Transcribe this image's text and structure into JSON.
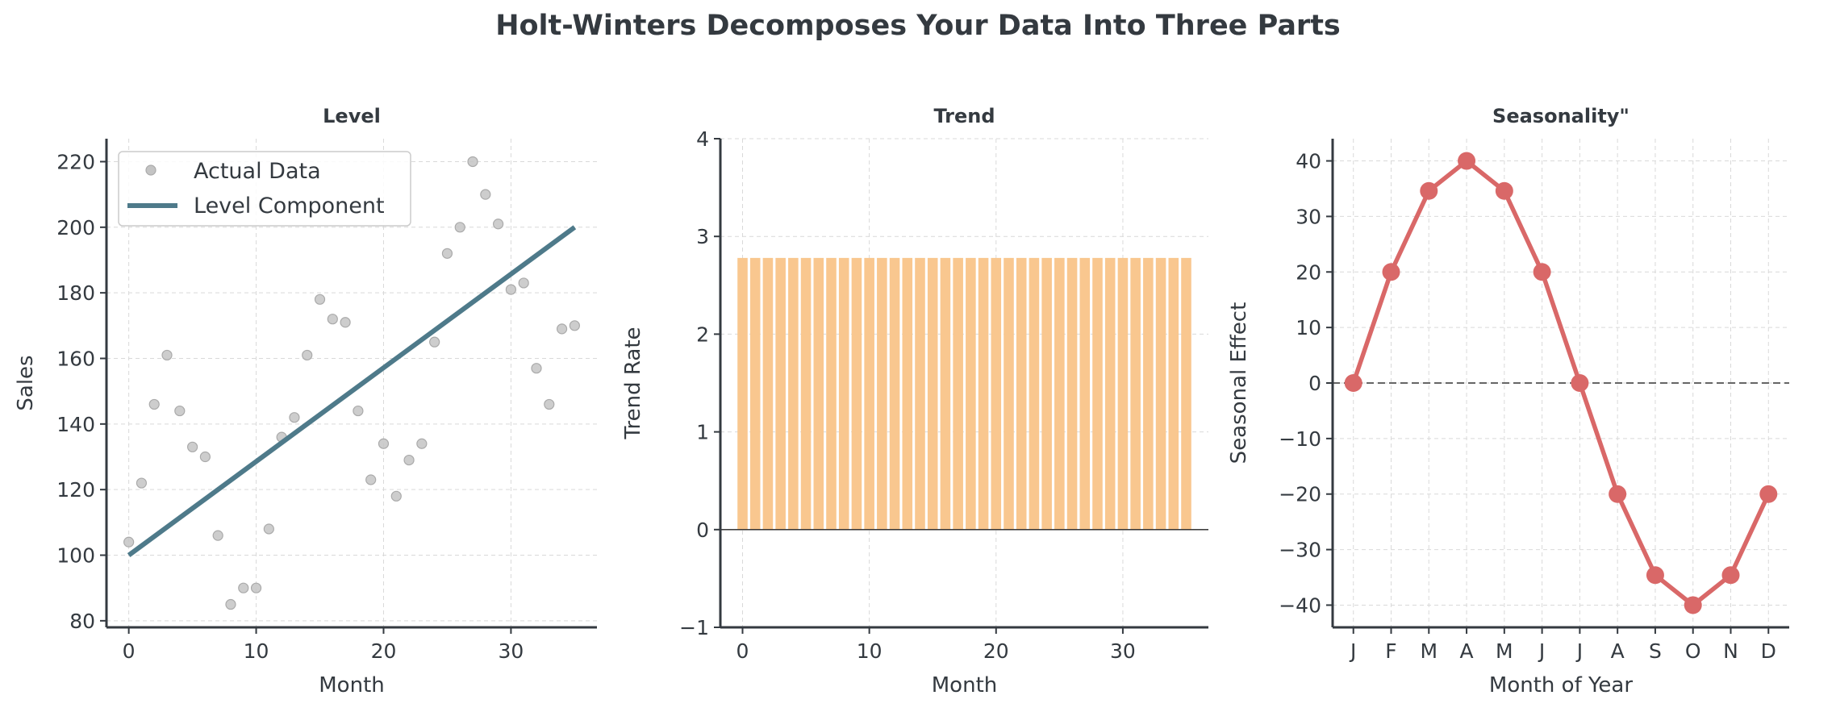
{
  "figure": {
    "title": "Holt-Winters Decomposes Your Data Into Three Parts"
  },
  "colors": {
    "text": "#343a40",
    "grid": "#d9d9d9",
    "actual": "#c4c4c4",
    "level": "#4e7a8a",
    "trend": "#f9c78f",
    "season": "#d96868",
    "zero_line": "#666666"
  },
  "chart_data": [
    {
      "type": "line",
      "title": "Level",
      "xlabel": "Month",
      "ylabel": "Sales",
      "xlim": [
        -1.75,
        36.75
      ],
      "ylim": [
        78,
        227
      ],
      "xticks": [
        0,
        10,
        20,
        30
      ],
      "yticks": [
        80,
        100,
        120,
        140,
        160,
        180,
        200,
        220
      ],
      "grid": true,
      "legend": "top-left",
      "series": [
        {
          "name": "Actual Data",
          "style": "scatter",
          "x": [
            0,
            1,
            2,
            3,
            4,
            5,
            6,
            7,
            8,
            9,
            10,
            11,
            12,
            13,
            14,
            15,
            16,
            17,
            18,
            19,
            20,
            21,
            22,
            23,
            24,
            25,
            26,
            27,
            28,
            29,
            30,
            31,
            32,
            33,
            34,
            35
          ],
          "y": [
            104,
            122,
            146,
            161,
            144,
            133,
            130,
            106,
            85,
            90,
            90,
            108,
            136,
            142,
            161,
            178,
            172,
            171,
            144,
            123,
            134,
            118,
            129,
            134,
            165,
            192,
            200,
            220,
            210,
            201,
            181,
            183,
            157,
            146,
            169,
            170
          ]
        },
        {
          "name": "Level Component",
          "style": "line",
          "x": [
            0,
            35
          ],
          "y": [
            100,
            200
          ]
        }
      ]
    },
    {
      "type": "bar",
      "title": "Trend",
      "xlabel": "Month",
      "ylabel": "Trend Rate",
      "xlim": [
        -1.75,
        36.75
      ],
      "ylim": [
        -1,
        4
      ],
      "xticks": [
        0,
        10,
        20,
        30
      ],
      "yticks": [
        -1,
        0,
        1,
        2,
        3,
        4
      ],
      "grid": true,
      "x": [
        0,
        1,
        2,
        3,
        4,
        5,
        6,
        7,
        8,
        9,
        10,
        11,
        12,
        13,
        14,
        15,
        16,
        17,
        18,
        19,
        20,
        21,
        22,
        23,
        24,
        25,
        26,
        27,
        28,
        29,
        30,
        31,
        32,
        33,
        34,
        35
      ],
      "values": [
        2.78,
        2.78,
        2.78,
        2.78,
        2.78,
        2.78,
        2.78,
        2.78,
        2.78,
        2.78,
        2.78,
        2.78,
        2.78,
        2.78,
        2.78,
        2.78,
        2.78,
        2.78,
        2.78,
        2.78,
        2.78,
        2.78,
        2.78,
        2.78,
        2.78,
        2.78,
        2.78,
        2.78,
        2.78,
        2.78,
        2.78,
        2.78,
        2.78,
        2.78,
        2.78,
        2.78
      ]
    },
    {
      "type": "line",
      "title": "Seasonality\"",
      "xlabel": "Month of Year",
      "ylabel": "Seasonal Effect",
      "xlim": [
        -0.55,
        11.55
      ],
      "ylim": [
        -44,
        44
      ],
      "yticks": [
        -40,
        -30,
        -20,
        -10,
        0,
        10,
        20,
        30,
        40
      ],
      "grid": true,
      "categories": [
        "J",
        "F",
        "M",
        "A",
        "M",
        "J",
        "J",
        "A",
        "S",
        "O",
        "N",
        "D"
      ],
      "values": [
        0,
        20,
        34.6,
        40,
        34.6,
        20,
        0,
        -20,
        -34.6,
        -40,
        -34.6,
        -20
      ]
    }
  ]
}
